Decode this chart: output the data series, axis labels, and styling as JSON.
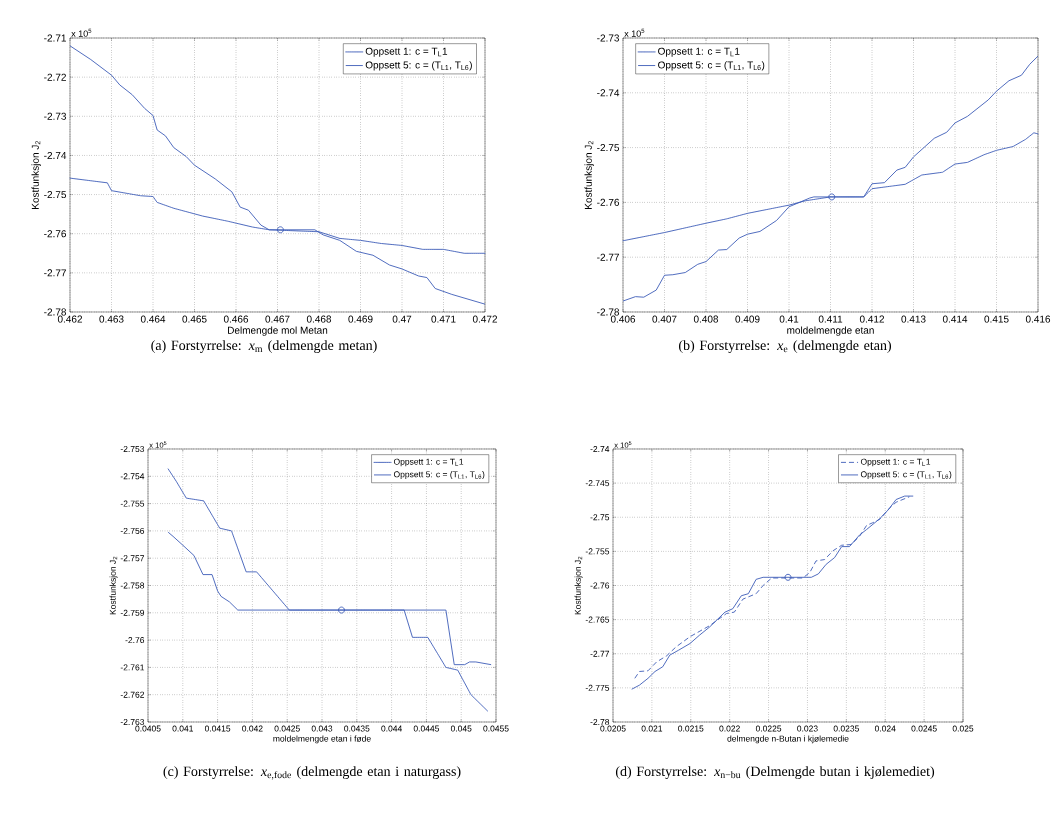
{
  "chart_data": [
    {
      "type": "line",
      "xlabel": "Delmengde mol Metan",
      "ylabel": "Kostfunksjon J$_{2}$",
      "grid": true,
      "legend": "top right",
      "annotations": [
        "x 10$^{5}$",
        "(a) Forstyrrelse: *x*$_{m}$ (delmengde metan)"
      ],
      "xlim": [
        0.462,
        0.472
      ],
      "xticks": [
        0.462,
        0.463,
        0.464,
        0.465,
        0.466,
        0.467,
        0.468,
        0.469,
        0.47,
        0.471,
        0.472
      ],
      "ylim": [
        -2.78,
        -2.71
      ],
      "yticks": [
        -2.78,
        -2.77,
        -2.76,
        -2.75,
        -2.74,
        -2.73,
        -2.72,
        -2.71
      ],
      "series": [
        {
          "name": "Oppsett 1: c = T$_{L}$1",
          "color": "#3d5cb8",
          "line_style": "dotted",
          "marker": "none",
          "x": [
            0.462,
            0.4629,
            0.463,
            0.4637,
            0.464,
            0.4641,
            0.4645,
            0.4652,
            0.4658,
            0.4664,
            0.4668,
            0.468,
            0.4685,
            0.469,
            0.4695,
            0.47,
            0.4705,
            0.471,
            0.4715,
            0.472
          ],
          "values": [
            -2.7458,
            -2.747,
            -2.749,
            -2.7503,
            -2.7505,
            -2.752,
            -2.7535,
            -2.7555,
            -2.7568,
            -2.7583,
            -2.759,
            -2.7595,
            -2.7612,
            -2.7617,
            -2.7625,
            -2.763,
            -2.764,
            -2.764,
            -2.765,
            -2.765
          ]
        },
        {
          "name": "Oppsett 5: c = (T$_{L1}$, T$_{L6}$)",
          "color": "#3d5cb8",
          "line_style": "solid",
          "marker": "none",
          "x": [
            0.462,
            0.4625,
            0.463,
            0.4632,
            0.4635,
            0.4638,
            0.464,
            0.4641,
            0.4643,
            0.4645,
            0.4648,
            0.465,
            0.4655,
            0.4659,
            0.4661,
            0.4663,
            0.4666,
            0.4668,
            0.4679,
            0.4681,
            0.4685,
            0.4689,
            0.4693,
            0.4697,
            0.47,
            0.4704,
            0.4706,
            0.4708,
            0.4712,
            0.472
          ],
          "values": [
            -2.712,
            -2.7155,
            -2.7195,
            -2.722,
            -2.7245,
            -2.728,
            -2.7298,
            -2.7335,
            -2.735,
            -2.738,
            -2.7403,
            -2.7425,
            -2.746,
            -2.7493,
            -2.7532,
            -2.754,
            -2.7578,
            -2.759,
            -2.759,
            -2.7603,
            -2.7617,
            -2.7645,
            -2.7655,
            -2.768,
            -2.769,
            -2.7708,
            -2.7712,
            -2.774,
            -2.7755,
            -2.778
          ]
        },
        {
          "type": "scatter",
          "color": "#3d5cb8",
          "marker": "circle",
          "x": [
            0.46707
          ],
          "values": [
            -2.759
          ]
        }
      ]
    },
    {
      "type": "line",
      "xlabel": "moldelmengde etan",
      "ylabel": "Kostfunksjon J$_{2}$",
      "grid": true,
      "legend": "top left",
      "annotations": [
        "x 10$^{5}$",
        "(b) Forstyrrelse: *x*$_{e}$ (delmengde etan)"
      ],
      "xlim": [
        0.406,
        0.416
      ],
      "xticks": [
        0.406,
        0.407,
        0.408,
        0.409,
        0.41,
        0.411,
        0.412,
        0.413,
        0.414,
        0.415,
        0.416
      ],
      "ylim": [
        -2.78,
        -2.73
      ],
      "yticks": [
        -2.78,
        -2.77,
        -2.76,
        -2.75,
        -2.74,
        -2.73
      ],
      "series": [
        {
          "name": "Oppsett 1: c = T$_{L}$1",
          "color": "#3d5cb8",
          "line_style": "dotted",
          "marker": "none",
          "x": [
            0.406,
            0.407,
            0.408,
            0.4085,
            0.409,
            0.41,
            0.4104,
            0.411,
            0.4118,
            0.412,
            0.4125,
            0.4128,
            0.4132,
            0.4137,
            0.414,
            0.4143,
            0.4147,
            0.415,
            0.4154,
            0.4157,
            0.4159,
            0.416
          ],
          "values": [
            -2.767,
            -2.7655,
            -2.7638,
            -2.763,
            -2.762,
            -2.7605,
            -2.7597,
            -2.759,
            -2.759,
            -2.7575,
            -2.757,
            -2.7567,
            -2.755,
            -2.7545,
            -2.753,
            -2.7527,
            -2.7513,
            -2.7505,
            -2.7498,
            -2.7485,
            -2.7473,
            -2.7475
          ]
        },
        {
          "name": "Oppsett 5: c = (T$_{L1}$, T$_{L6}$)",
          "color": "#3d5cb8",
          "line_style": "solid",
          "marker": "none",
          "x": [
            0.406,
            0.4063,
            0.4065,
            0.4068,
            0.407,
            0.4072,
            0.4075,
            0.4078,
            0.408,
            0.4083,
            0.4085,
            0.4088,
            0.409,
            0.4093,
            0.4097,
            0.41,
            0.4105,
            0.4106,
            0.4118,
            0.412,
            0.4123,
            0.4126,
            0.4128,
            0.413,
            0.4135,
            0.4138,
            0.414,
            0.4143,
            0.4148,
            0.415,
            0.4153,
            0.4156,
            0.4158,
            0.416
          ],
          "values": [
            -2.778,
            -2.7772,
            -2.7773,
            -2.776,
            -2.7733,
            -2.7732,
            -2.7728,
            -2.7713,
            -2.7708,
            -2.7687,
            -2.7686,
            -2.7665,
            -2.7658,
            -2.7653,
            -2.7633,
            -2.7608,
            -2.7592,
            -2.759,
            -2.759,
            -2.7566,
            -2.7564,
            -2.7541,
            -2.7536,
            -2.7517,
            -2.7483,
            -2.7472,
            -2.7455,
            -2.7443,
            -2.7413,
            -2.7397,
            -2.7378,
            -2.7368,
            -2.7348,
            -2.7333
          ]
        },
        {
          "type": "scatter",
          "color": "#3d5cb8",
          "marker": "circle",
          "x": [
            0.41103
          ],
          "values": [
            -2.759
          ]
        }
      ]
    },
    {
      "type": "line",
      "xlabel": "moldelmengde etan i føde",
      "ylabel": "Kostfunksjon J$_{2}$",
      "grid": true,
      "legend": "top right",
      "annotations": [
        "x 10$^{5}$",
        "(c) Forstyrrelse: *x*$_{e,fode}$ (delmengde etan i naturgass)"
      ],
      "xlim": [
        0.0405,
        0.0455
      ],
      "xticks": [
        0.0405,
        0.041,
        0.0415,
        0.042,
        0.0425,
        0.043,
        0.0435,
        0.044,
        0.0445,
        0.045,
        0.0455
      ],
      "ylim": [
        -2.763,
        -2.753
      ],
      "yticks": [
        -2.763,
        -2.762,
        -2.761,
        -2.76,
        -2.759,
        -2.758,
        -2.757,
        -2.756,
        -2.755,
        -2.754,
        -2.753
      ],
      "series": [
        {
          "name": "Oppsett 1: c = T$_{L}$1",
          "color": "#3d5cb8",
          "line_style": "dotted",
          "marker": "none",
          "x": [
            0.04079,
            0.04091,
            0.04105,
            0.0413,
            0.04153,
            0.0417,
            0.04191,
            0.04206,
            0.04253,
            0.04399,
            0.04418,
            0.0443,
            0.04452,
            0.04478,
            0.04495,
            0.04514,
            0.04538
          ],
          "values": [
            -2.75373,
            -2.7542,
            -2.7548,
            -2.7549,
            -2.7559,
            -2.756,
            -2.7575,
            -2.7575,
            -2.7589,
            -2.7589,
            -2.7589,
            -2.7599,
            -2.7599,
            -2.761,
            -2.7611,
            -2.762,
            -2.7626
          ]
        },
        {
          "name": "Oppsett 5: c = (T$_{L1}$, T$_{L6}$)",
          "color": "#3d5cb8",
          "line_style": "solid",
          "marker": "none",
          "x": [
            0.04079,
            0.04086,
            0.04099,
            0.04116,
            0.04129,
            0.04142,
            0.0415,
            0.04155,
            0.04167,
            0.04179,
            0.04478,
            0.0449,
            0.04505,
            0.04512,
            0.04521,
            0.04543
          ],
          "values": [
            -2.75605,
            -2.7562,
            -2.7565,
            -2.7569,
            -2.7576,
            -2.7576,
            -2.7582,
            -2.7584,
            -2.7586,
            -2.7589,
            -2.7589,
            -2.7609,
            -2.7609,
            -2.7608,
            -2.7608,
            -2.7609
          ]
        },
        {
          "type": "scatter",
          "color": "#3d5cb8",
          "marker": "circle",
          "x": [
            0.04328
          ],
          "values": [
            -2.7589
          ]
        }
      ]
    },
    {
      "type": "line",
      "xlabel": "delmengde n-Butan i kjølemedie",
      "ylabel": "Kostfunksjon J$_{2}$",
      "grid": true,
      "legend": "top right",
      "annotations": [
        "x 10$^{5}$",
        "(d) Forstyrrelse: *x*$_{n−bu}$ (Delmengde butan i kjølemediet)"
      ],
      "xlim": [
        0.0205,
        0.025
      ],
      "xticks": [
        0.0205,
        0.021,
        0.0215,
        0.022,
        0.0225,
        0.023,
        0.0235,
        0.024,
        0.0245,
        0.025
      ],
      "ylim": [
        -2.78,
        -2.74
      ],
      "yticks": [
        -2.78,
        -2.775,
        -2.77,
        -2.765,
        -2.76,
        -2.755,
        -2.75,
        -2.745,
        -2.74
      ],
      "series": [
        {
          "name": "Oppsett 1: c = T$_{L}$1",
          "color": "#3d5cb8",
          "line_style": "dashed",
          "marker": "none",
          "x": [
            0.02078,
            0.02084,
            0.02095,
            0.02106,
            0.02119,
            0.02131,
            0.02149,
            0.02174,
            0.02196,
            0.02206,
            0.02217,
            0.02234,
            0.02243,
            0.02254,
            0.02294,
            0.02303,
            0.02311,
            0.02322,
            0.02333,
            0.02344,
            0.02356,
            0.02367,
            0.02376,
            0.02384,
            0.02393,
            0.02406,
            0.02414,
            0.02431
          ],
          "values": [
            -2.7736,
            -2.7726,
            -2.7725,
            -2.7712,
            -2.7703,
            -2.769,
            -2.7675,
            -2.7659,
            -2.7641,
            -2.7639,
            -2.762,
            -2.7612,
            -2.76,
            -2.7589,
            -2.7589,
            -2.7581,
            -2.7564,
            -2.7562,
            -2.7549,
            -2.7541,
            -2.754,
            -2.7528,
            -2.7512,
            -2.7508,
            -2.7503,
            -2.7486,
            -2.7478,
            -2.747
          ]
        },
        {
          "name": "Oppsett 5: c = (T$_{L1}$, T$_{L6}$)",
          "color": "#3d5cb8",
          "line_style": "solid",
          "marker": "none",
          "x": [
            0.02074,
            0.02084,
            0.02095,
            0.02104,
            0.02114,
            0.02123,
            0.02134,
            0.02149,
            0.02161,
            0.02174,
            0.02194,
            0.02204,
            0.02215,
            0.02224,
            0.02234,
            0.02243,
            0.02294,
            0.02305,
            0.02314,
            0.02324,
            0.02335,
            0.02344,
            0.02354,
            0.02367,
            0.02376,
            0.02393,
            0.02404,
            0.02414,
            0.02425,
            0.02436
          ],
          "values": [
            -2.7752,
            -2.7746,
            -2.7736,
            -2.7726,
            -2.7719,
            -2.7702,
            -2.7695,
            -2.7685,
            -2.7673,
            -2.7661,
            -2.7639,
            -2.7634,
            -2.7615,
            -2.7612,
            -2.7591,
            -2.7588,
            -2.7588,
            -2.7588,
            -2.7583,
            -2.7569,
            -2.7559,
            -2.7543,
            -2.7543,
            -2.7526,
            -2.7518,
            -2.7502,
            -2.7489,
            -2.7474,
            -2.7469,
            -2.7469
          ]
        },
        {
          "type": "scatter",
          "color": "#3d5cb8",
          "marker": "circle",
          "x": [
            0.02275
          ],
          "values": [
            -2.7588
          ]
        }
      ]
    }
  ]
}
